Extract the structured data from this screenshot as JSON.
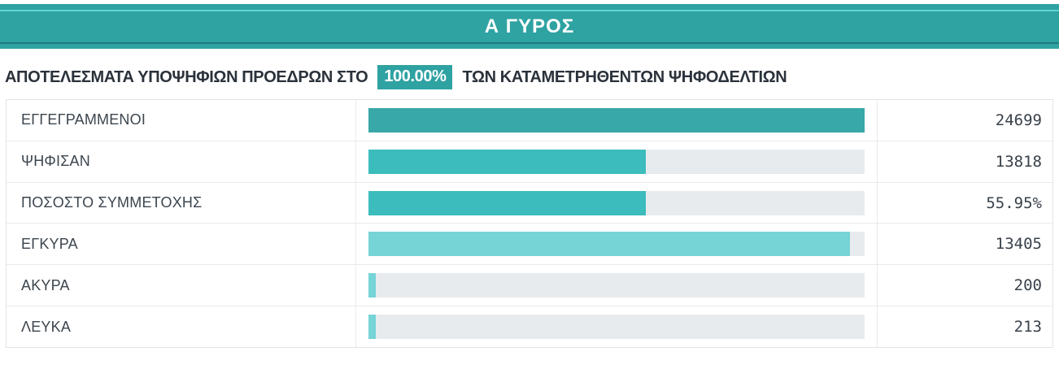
{
  "header": {
    "title": "Α ΓΥΡΟΣ"
  },
  "subtitle": {
    "prefix": "ΑΠΟΤΕΛΕΣΜΑΤΑ ΥΠΟΨΗΦΙΩΝ ΠΡΟΕΔΡΩΝ ΣΤΟ",
    "highlight": "100.00%",
    "suffix": "ΤΩΝ ΚΑΤΑΜΕΤΡΗΘΕΝΤΩΝ ΨΗΦΟΔΕΛΤΙΩΝ"
  },
  "colors": {
    "accent_teal": "#2FA2A2",
    "bar_dark_teal": "#38A8A8",
    "bar_mid_teal": "#3CBCBC",
    "bar_light_teal": "#76D3D6",
    "bar_track_gray": "#E8EBEE",
    "header_inner_light": "#63D2D2",
    "header_inner_dark": "#1E7B7B",
    "text_dark": "#2B323B"
  },
  "chart_data": {
    "type": "bar",
    "orientation": "horizontal",
    "title": "Α ΓΥΡΟΣ",
    "subtitle": "ΑΠΟΤΕΛΕΣΜΑΤΑ ΥΠΟΨΗΦΙΩΝ ΠΡΟΕΔΡΩΝ ΣΤΟ 100.00% ΤΩΝ ΚΑΤΑΜΕΤΡΗΘΕΝΤΩΝ ΨΗΦΟΔΕΛΤΙΩΝ",
    "counted_ballots_pct": "100.00%",
    "grid": false,
    "legend": null,
    "xlim_pct": [
      0,
      100
    ],
    "rows": [
      {
        "label": "ΕΓΓΕΓΡΑΜΜΕΝΟΙ",
        "value": "24699",
        "numeric": 24699,
        "bar_pct": 100,
        "color": "#38A8A8"
      },
      {
        "label": "ΨΗΦΙΣΑΝ",
        "value": "13818",
        "numeric": 13818,
        "bar_pct": 55.95,
        "color": "#3CBCBC"
      },
      {
        "label": "ΠΟΣΟΣΤΟ ΣΥΜΜΕΤΟΧΗΣ",
        "value": "55.95%",
        "numeric": 55.95,
        "bar_pct": 55.95,
        "color": "#3CBCBC"
      },
      {
        "label": "ΕΓΚΥΡΑ",
        "value": "13405",
        "numeric": 13405,
        "bar_pct": 97.0,
        "color": "#76D3D6"
      },
      {
        "label": "ΑΚΥΡΑ",
        "value": "200",
        "numeric": 200,
        "bar_pct": 1.45,
        "color": "#76D3D6"
      },
      {
        "label": "ΛΕΥΚΑ",
        "value": "213",
        "numeric": 213,
        "bar_pct": 1.54,
        "color": "#76D3D6"
      }
    ]
  }
}
